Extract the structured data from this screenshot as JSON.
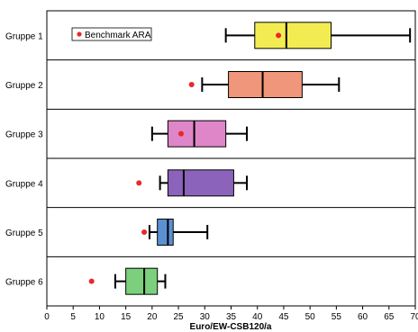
{
  "chart_data": {
    "type": "boxplot",
    "xlabel": "Euro/EW-CSB120/a",
    "xlim": [
      0,
      70
    ],
    "xticks": [
      0,
      5,
      10,
      15,
      20,
      25,
      30,
      35,
      40,
      45,
      50,
      55,
      60,
      65,
      70
    ],
    "grid": "horizontal",
    "legend": {
      "label": "Benchmark ARA",
      "position": "top-left",
      "color": "#e8282b"
    },
    "groups": [
      {
        "name": "Gruppe 1",
        "whisker_low": 34,
        "q1": 39.5,
        "median": 45.5,
        "q3": 54,
        "whisker_high": 69,
        "benchmark": 44,
        "color": "#f2ec52"
      },
      {
        "name": "Gruppe 2",
        "whisker_low": 29.5,
        "q1": 34.5,
        "median": 41,
        "q3": 48.5,
        "whisker_high": 55.5,
        "benchmark": 27.5,
        "color": "#f0967a"
      },
      {
        "name": "Gruppe 3",
        "whisker_low": 20,
        "q1": 23,
        "median": 28,
        "q3": 34,
        "whisker_high": 38,
        "benchmark": 25.5,
        "color": "#de86c8"
      },
      {
        "name": "Gruppe 4",
        "whisker_low": 21.5,
        "q1": 23,
        "median": 26,
        "q3": 35.5,
        "whisker_high": 38,
        "benchmark": 17.5,
        "color": "#8c63ba"
      },
      {
        "name": "Gruppe 5",
        "whisker_low": 19.5,
        "q1": 21,
        "median": 23,
        "q3": 24,
        "whisker_high": 30.5,
        "benchmark": 18.5,
        "color": "#5b91d3"
      },
      {
        "name": "Gruppe 6",
        "whisker_low": 13,
        "q1": 15,
        "median": 18.5,
        "q3": 21,
        "whisker_high": 22.5,
        "benchmark": 8.5,
        "color": "#7ccf7c"
      }
    ]
  }
}
